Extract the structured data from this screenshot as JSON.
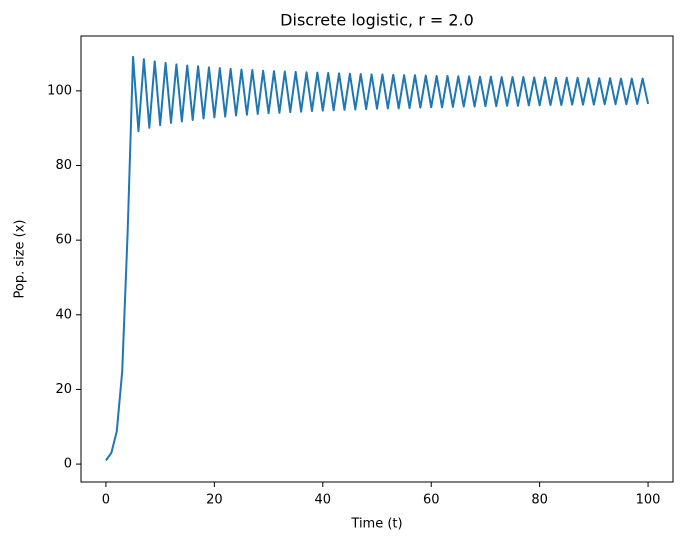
{
  "chart_data": {
    "type": "line",
    "title": "Discrete logistic, r = 2.0",
    "x_label": "Time (t)",
    "y_label": "Pop. size (x)",
    "x": [
      0,
      1,
      2,
      3,
      4,
      5,
      6,
      7,
      8,
      9,
      10,
      11,
      12,
      13,
      14,
      15,
      16,
      17,
      18,
      19,
      20,
      21,
      22,
      23,
      24,
      25,
      26,
      27,
      28,
      29,
      30,
      31,
      32,
      33,
      34,
      35,
      36,
      37,
      38,
      39,
      40,
      41,
      42,
      43,
      44,
      45,
      46,
      47,
      48,
      49,
      50,
      51,
      52,
      53,
      54,
      55,
      56,
      57,
      58,
      59,
      60,
      61,
      62,
      63,
      64,
      65,
      66,
      67,
      68,
      69,
      70,
      71,
      72,
      73,
      74,
      75,
      76,
      77,
      78,
      79,
      80,
      81,
      82,
      83,
      84,
      85,
      86,
      87,
      88,
      89,
      90,
      91,
      92,
      93,
      94,
      95,
      96,
      97,
      98,
      99,
      100
    ],
    "series": [
      {
        "name": "x",
        "color": "#1f77b4",
        "values": [
          1.0,
          3.0,
          8.8,
          24.8,
          62.0,
          109.1,
          89.2,
          108.5,
          90.1,
          107.9,
          90.8,
          107.5,
          91.4,
          107.1,
          91.8,
          106.8,
          92.2,
          106.6,
          92.6,
          106.3,
          92.9,
          106.1,
          93.1,
          105.9,
          93.4,
          105.7,
          93.6,
          105.6,
          93.8,
          105.4,
          94.0,
          105.3,
          94.1,
          105.2,
          94.3,
          105.1,
          94.4,
          105.0,
          94.6,
          104.9,
          94.7,
          104.8,
          94.8,
          104.7,
          94.9,
          104.6,
          95.0,
          104.5,
          95.1,
          104.4,
          95.2,
          104.4,
          95.3,
          104.3,
          95.3,
          104.2,
          95.4,
          104.2,
          95.5,
          104.1,
          95.6,
          104.0,
          95.6,
          104.0,
          95.7,
          103.9,
          95.8,
          103.9,
          95.8,
          103.8,
          95.9,
          103.8,
          95.9,
          103.7,
          96.0,
          103.7,
          96.0,
          103.7,
          96.1,
          103.6,
          96.1,
          103.6,
          96.2,
          103.5,
          96.2,
          103.5,
          96.3,
          103.5,
          96.3,
          103.4,
          96.3,
          103.4,
          96.4,
          103.4,
          96.4,
          103.3,
          96.4,
          103.3,
          96.5,
          103.3,
          96.5
        ]
      }
    ],
    "xlim": [
      -4.6,
      104.6
    ],
    "ylim": [
      -4.8,
      114.7
    ],
    "xticks": [
      0,
      20,
      40,
      60,
      80,
      100
    ],
    "yticks": [
      0,
      20,
      40,
      60,
      80,
      100
    ],
    "grid": false
  }
}
